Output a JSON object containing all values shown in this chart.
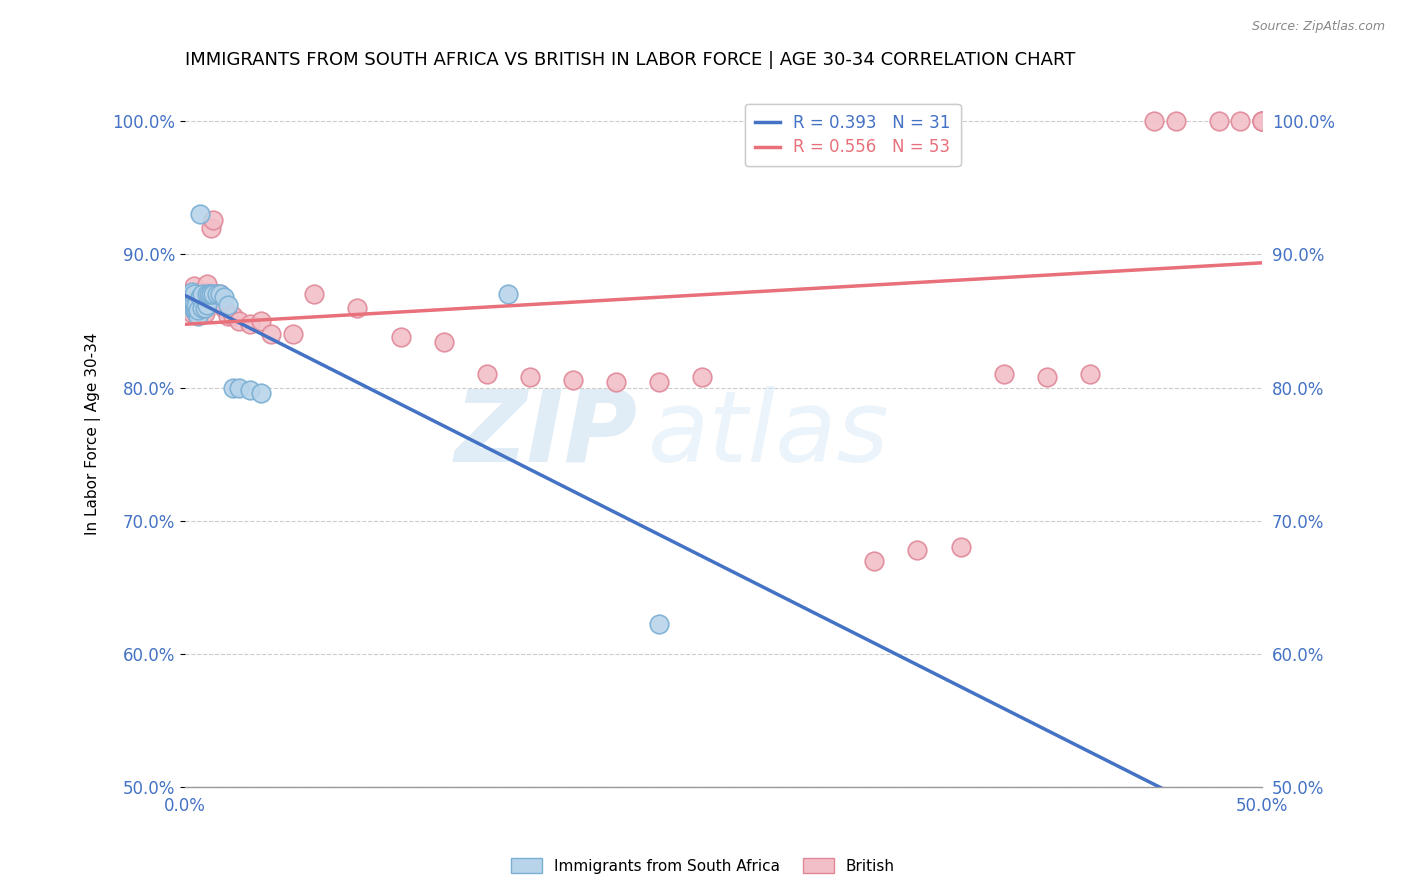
{
  "title": "IMMIGRANTS FROM SOUTH AFRICA VS BRITISH IN LABOR FORCE | AGE 30-34 CORRELATION CHART",
  "source": "Source: ZipAtlas.com",
  "xlabel": "",
  "ylabel": "In Labor Force | Age 30-34",
  "xlim": [
    0.0,
    0.5
  ],
  "ylim": [
    0.5,
    1.03
  ],
  "xticks": [
    0.0,
    0.05,
    0.1,
    0.15,
    0.2,
    0.25,
    0.3,
    0.35,
    0.4,
    0.45,
    0.5
  ],
  "yticks": [
    0.5,
    0.6,
    0.7,
    0.8,
    0.9,
    1.0
  ],
  "sa_color": "#b8d4ea",
  "sa_edge_color": "#7aafd4",
  "british_color": "#f2bfc8",
  "british_edge_color": "#e08898",
  "line_sa_color": "#4472c4",
  "line_british_color": "#e8707a",
  "legend_r_sa": "R = 0.393",
  "legend_n_sa": "N = 31",
  "legend_r_br": "R = 0.556",
  "legend_n_br": "N = 53",
  "sa_x": [
    0.002,
    0.003,
    0.003,
    0.004,
    0.004,
    0.004,
    0.005,
    0.005,
    0.005,
    0.006,
    0.006,
    0.007,
    0.007,
    0.008,
    0.008,
    0.009,
    0.01,
    0.01,
    0.011,
    0.012,
    0.013,
    0.015,
    0.016,
    0.018,
    0.02,
    0.022,
    0.025,
    0.03,
    0.035,
    0.15,
    0.22
  ],
  "sa_y": [
    0.868,
    0.87,
    0.872,
    0.858,
    0.864,
    0.87,
    0.858,
    0.858,
    0.862,
    0.854,
    0.858,
    0.868,
    0.93,
    0.86,
    0.87,
    0.86,
    0.862,
    0.87,
    0.87,
    0.87,
    0.87,
    0.87,
    0.87,
    0.868,
    0.862,
    0.8,
    0.8,
    0.798,
    0.796,
    0.87,
    0.622
  ],
  "british_x": [
    0.001,
    0.002,
    0.002,
    0.003,
    0.003,
    0.004,
    0.004,
    0.005,
    0.005,
    0.006,
    0.006,
    0.007,
    0.007,
    0.008,
    0.009,
    0.01,
    0.01,
    0.011,
    0.012,
    0.013,
    0.014,
    0.016,
    0.018,
    0.02,
    0.022,
    0.025,
    0.03,
    0.035,
    0.04,
    0.05,
    0.06,
    0.08,
    0.1,
    0.12,
    0.14,
    0.16,
    0.18,
    0.2,
    0.22,
    0.24,
    0.32,
    0.34,
    0.36,
    0.38,
    0.4,
    0.42,
    0.45,
    0.46,
    0.48,
    0.49,
    0.5,
    0.5,
    0.5
  ],
  "british_y": [
    0.858,
    0.86,
    0.864,
    0.856,
    0.862,
    0.87,
    0.876,
    0.856,
    0.86,
    0.856,
    0.86,
    0.858,
    0.862,
    0.856,
    0.856,
    0.872,
    0.878,
    0.87,
    0.92,
    0.926,
    0.87,
    0.87,
    0.86,
    0.854,
    0.854,
    0.85,
    0.848,
    0.85,
    0.84,
    0.84,
    0.87,
    0.86,
    0.838,
    0.834,
    0.81,
    0.808,
    0.806,
    0.804,
    0.804,
    0.808,
    0.67,
    0.678,
    0.68,
    0.81,
    0.808,
    0.81,
    1.0,
    1.0,
    1.0,
    1.0,
    1.0,
    1.0,
    1.0
  ]
}
